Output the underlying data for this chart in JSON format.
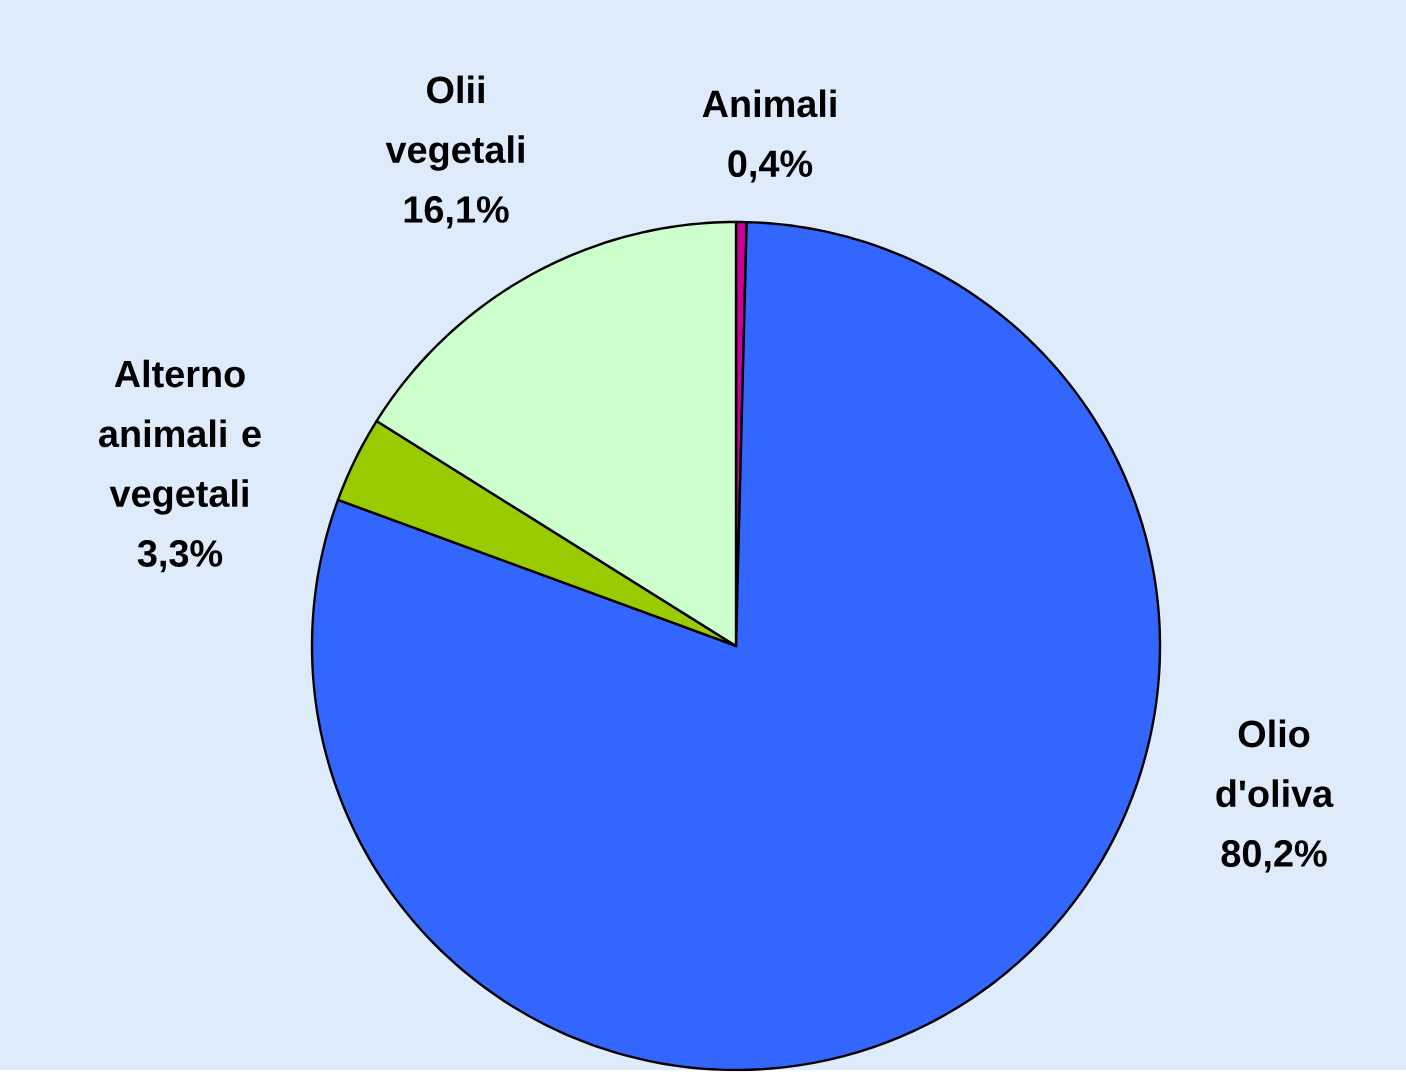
{
  "chart_data": {
    "type": "pie",
    "categories": [
      "Animali",
      "Olio d'oliva",
      "Alterno animali e vegetali",
      "Olii vegetali"
    ],
    "values": [
      0.4,
      80.2,
      3.3,
      16.1
    ],
    "colors": [
      "#cc0099",
      "#3366ff",
      "#99cc00",
      "#ccffcc"
    ],
    "value_labels": [
      "0,4%",
      "80,2%",
      "3,3%",
      "16,1%"
    ]
  }
}
